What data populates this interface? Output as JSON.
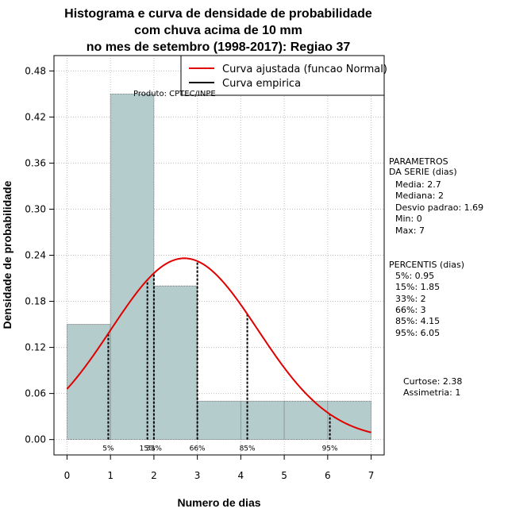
{
  "chart_data": {
    "type": "histogram",
    "title_lines": [
      "Histograma e curva de densidade de probabilidade",
      "com chuva acima de 10 mm",
      "no mes de setembro (1998-2017): Regiao 37"
    ],
    "xlabel": "Numero de dias",
    "ylabel": "Densidade de probabilidade",
    "xlim": [
      -0.3,
      7.3
    ],
    "ylim": [
      -0.02,
      0.5
    ],
    "x_ticks": [
      "0",
      "1",
      "2",
      "3",
      "4",
      "5",
      "6",
      "7"
    ],
    "y_ticks": [
      "0.00",
      "0.06",
      "0.12",
      "0.18",
      "0.24",
      "0.30",
      "0.36",
      "0.42",
      "0.48"
    ],
    "bins": [
      {
        "from": 0,
        "to": 1,
        "density": 0.15
      },
      {
        "from": 1,
        "to": 2,
        "density": 0.45
      },
      {
        "from": 2,
        "to": 3,
        "density": 0.2
      },
      {
        "from": 3,
        "to": 4,
        "density": 0.05
      },
      {
        "from": 4,
        "to": 5,
        "density": 0.05
      },
      {
        "from": 5,
        "to": 6,
        "density": 0.05
      },
      {
        "from": 6,
        "to": 7,
        "density": 0.05
      }
    ],
    "bar_color": "#b5cccc",
    "curve_color": "#e00000",
    "normal_fit": {
      "mean": 2.7,
      "sd": 1.69,
      "x_from": 0,
      "x_to": 7
    },
    "percentile_markers": [
      {
        "label": "5%",
        "x": 0.95
      },
      {
        "label": "15%",
        "x": 1.85
      },
      {
        "label": "33%",
        "x": 2.0
      },
      {
        "label": "66%",
        "x": 3.0
      },
      {
        "label": "85%",
        "x": 4.15
      },
      {
        "label": "95%",
        "x": 6.05
      }
    ],
    "legend": [
      {
        "label": "Curva ajustada (funcao Normal)",
        "color": "#e00000"
      },
      {
        "label": "Curva empirica",
        "color": "#000000"
      }
    ],
    "legend_position": "top-right",
    "grid": true
  },
  "product_label": "Produto: CPTEC/INPE",
  "parametros": {
    "heading": [
      "PARAMETROS",
      "DA SERIE (dias)"
    ],
    "lines": [
      "Media: 2.7",
      "Mediana: 2",
      "Desvio padrao: 1.69",
      "Min: 0",
      "Max: 7"
    ]
  },
  "percentis": {
    "heading": "PERCENTIS (dias)",
    "lines": [
      "5%: 0.95",
      "15%: 1.85",
      "33%: 2",
      "66%: 3",
      "85%: 4.15",
      "95%: 6.05"
    ]
  },
  "shape_stats": {
    "lines": [
      "Curtose: 2.38",
      "Assimetria: 1"
    ]
  }
}
